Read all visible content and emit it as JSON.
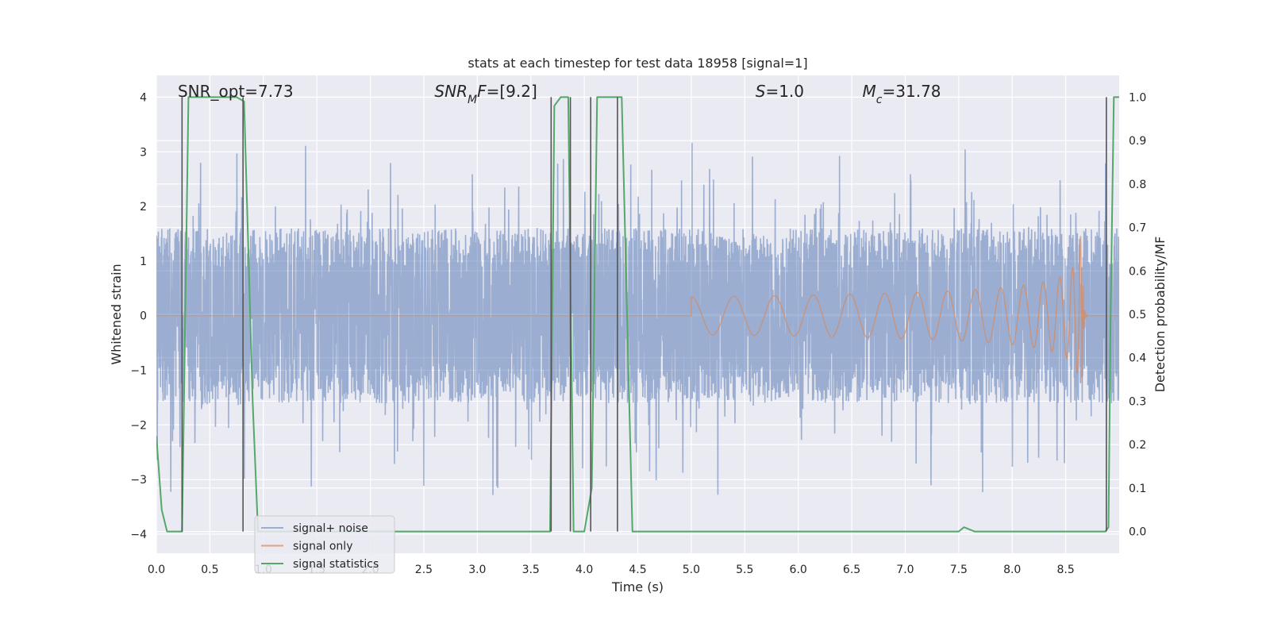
{
  "chart_data": {
    "type": "line",
    "title": "stats at each timestep for test data 18958 [signal=1]",
    "xlabel": "Time (s)",
    "ylabel_left": "Whitened strain",
    "ylabel_right": "Detection probability/MF",
    "xlim": [
      0.0,
      9.0
    ],
    "ylim_left": [
      -4.35,
      4.4
    ],
    "ylim_right": [
      -0.05,
      1.05
    ],
    "x_ticks": [
      0.0,
      0.5,
      1.0,
      1.5,
      2.0,
      2.5,
      3.0,
      3.5,
      4.0,
      4.5,
      5.0,
      5.5,
      6.0,
      6.5,
      7.0,
      7.5,
      8.0,
      8.5
    ],
    "x_tick_labels": [
      "0.0",
      "0.5",
      "1.0",
      "1.5",
      "2.0",
      "2.5",
      "3.0",
      "3.5",
      "4.0",
      "4.5",
      "5.0",
      "5.5",
      "6.0",
      "6.5",
      "7.0",
      "7.5",
      "8.0",
      "8.5"
    ],
    "y_left_ticks": [
      -4,
      -3,
      -2,
      -1,
      0,
      1,
      2,
      3,
      4
    ],
    "y_left_tick_labels": [
      "−4",
      "−3",
      "−2",
      "−1",
      "0",
      "1",
      "2",
      "3",
      "4"
    ],
    "y_right_ticks": [
      0.0,
      0.1,
      0.2,
      0.3,
      0.4,
      0.5,
      0.6,
      0.7,
      0.8,
      0.9,
      1.0
    ],
    "y_right_tick_labels": [
      "0.0",
      "0.1",
      "0.2",
      "0.3",
      "0.4",
      "0.5",
      "0.6",
      "0.7",
      "0.8",
      "0.9",
      "1.0"
    ],
    "grid": true,
    "legend_position": "lower-left",
    "annotations": [
      {
        "name": "snr-opt",
        "parts": [
          {
            "t": "SNR_opt=7.73",
            "i": false
          }
        ],
        "x": 0.2
      },
      {
        "name": "snr-mf",
        "parts": [
          {
            "t": "SNR",
            "i": true
          },
          {
            "t": "M",
            "i": true,
            "sub": true
          },
          {
            "t": "F",
            "i": true
          },
          {
            "t": "=[9.2]",
            "i": false
          }
        ],
        "x": 2.6
      },
      {
        "name": "s-value",
        "parts": [
          {
            "t": "S",
            "i": true
          },
          {
            "t": "=1.0",
            "i": false
          }
        ],
        "x": 5.6
      },
      {
        "name": "mc-value",
        "parts": [
          {
            "t": "M",
            "i": true
          },
          {
            "t": "c",
            "i": true,
            "sub": true
          },
          {
            "t": "=31.78",
            "i": false
          }
        ],
        "x": 6.6
      }
    ],
    "series": [
      {
        "name": "signal+ noise",
        "color": "#4c72b0",
        "axis": "left",
        "style": "noise",
        "duration": 9.0,
        "samples": 2200,
        "band": 1.6,
        "peak": 3.9
      },
      {
        "name": "signal only",
        "color": "#dd8452",
        "axis": "left",
        "style": "chirp",
        "start": 5.0,
        "merger": 8.65,
        "peak_amplitude": 1.9
      },
      {
        "name": "signal statistics",
        "color": "#55a868",
        "axis": "right",
        "style": "line",
        "x": [
          0.0,
          0.05,
          0.1,
          0.2,
          0.24,
          0.3,
          0.6,
          0.75,
          0.82,
          0.9,
          0.95,
          1.5,
          2.0,
          3.0,
          3.5,
          3.68,
          3.72,
          3.78,
          3.85,
          3.9,
          3.95,
          4.0,
          4.07,
          4.12,
          4.2,
          4.3,
          4.35,
          4.45,
          4.6,
          5.0,
          6.0,
          7.0,
          7.5,
          7.55,
          7.65,
          8.0,
          8.5,
          8.85,
          8.87,
          8.9,
          8.92,
          8.95,
          9.0
        ],
        "y": [
          0.22,
          0.05,
          0.0,
          0.0,
          0.0,
          1.0,
          1.0,
          1.0,
          0.99,
          0.3,
          0.0,
          0.0,
          0.0,
          0.0,
          0.0,
          0.0,
          0.98,
          1.0,
          1.0,
          0.0,
          0.0,
          0.0,
          0.1,
          1.0,
          1.0,
          1.0,
          1.0,
          0.0,
          0.0,
          0.0,
          0.0,
          0.0,
          0.0,
          0.01,
          0.0,
          0.0,
          0.0,
          0.0,
          0.0,
          0.01,
          0.5,
          1.0,
          1.0
        ]
      }
    ],
    "vertical_lines": {
      "color": "#555555",
      "x": [
        0.24,
        0.81,
        3.69,
        3.87,
        4.06,
        4.31,
        8.88
      ]
    }
  }
}
